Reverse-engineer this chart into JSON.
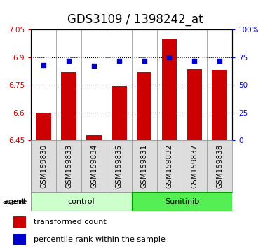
{
  "title": "GDS3109 / 1398242_at",
  "categories": [
    "GSM159830",
    "GSM159833",
    "GSM159834",
    "GSM159835",
    "GSM159831",
    "GSM159832",
    "GSM159837",
    "GSM159838"
  ],
  "bar_values": [
    6.595,
    6.82,
    6.475,
    6.745,
    6.82,
    7.0,
    6.835,
    6.83
  ],
  "percentile_values": [
    68,
    72,
    67,
    72,
    72,
    75,
    72,
    72
  ],
  "ylim_left": [
    6.45,
    7.05
  ],
  "ylim_right": [
    0,
    100
  ],
  "yticks_left": [
    6.45,
    6.6,
    6.75,
    6.9,
    7.05
  ],
  "yticks_right": [
    0,
    25,
    50,
    75,
    100
  ],
  "ytick_labels_right": [
    "0",
    "25",
    "50",
    "75",
    "100%"
  ],
  "bar_color": "#CC0000",
  "marker_color": "#0000CC",
  "bar_width": 0.6,
  "group_labels": [
    "control",
    "Sunitinib"
  ],
  "group_colors": [
    "#CCFFCC",
    "#55EE55"
  ],
  "group_border_colors": [
    "#999999",
    "#009900"
  ],
  "agent_label": "agent",
  "legend_bar_label": "transformed count",
  "legend_marker_label": "percentile rank within the sample",
  "tick_color_left": "#CC0000",
  "tick_color_right": "#0000CC",
  "title_fontsize": 12,
  "axis_fontsize": 7.5,
  "label_fontsize": 8
}
